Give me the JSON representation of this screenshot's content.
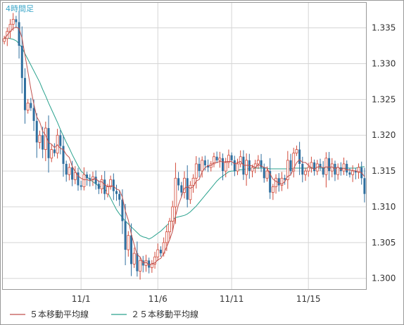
{
  "chart_data": {
    "type": "candlestick",
    "timeframe_label": "4時間足",
    "y_range": [
      1.2985,
      1.3385
    ],
    "y_ticks": [
      "1.335",
      "1.330",
      "1.325",
      "1.320",
      "1.315",
      "1.310",
      "1.305",
      "1.300"
    ],
    "x_ticks": [
      {
        "label": "11/1",
        "index": 26
      },
      {
        "label": "11/6",
        "index": 52
      },
      {
        "label": "11/11",
        "index": 77
      },
      {
        "label": "11/15",
        "index": 103
      }
    ],
    "grid": true,
    "legend_position": "bottom-left",
    "series_names": {
      "ma5": "５本移動平均線",
      "ma25": "２５本移動平均線"
    },
    "colors": {
      "up": "#d24a3a",
      "down": "#2f6f9f",
      "ma5": "#c0504d",
      "ma25": "#2aa28e",
      "grid": "#d5d5d5",
      "axis_text": "#333333"
    },
    "close_values": [
      1.3335,
      1.3345,
      1.3355,
      1.3362,
      1.3358,
      1.3325,
      1.328,
      1.3235,
      1.3245,
      1.3238,
      1.322,
      1.319,
      1.32,
      1.318,
      1.321,
      1.3168,
      1.318,
      1.3175,
      1.32,
      1.3185,
      1.316,
      1.3145,
      1.3155,
      1.3138,
      1.3148,
      1.313,
      1.3128,
      1.3145,
      1.314,
      1.3138,
      1.3142,
      1.3132,
      1.3125,
      1.3138,
      1.3118,
      1.3128,
      1.3138,
      1.3122,
      1.3118,
      1.311,
      1.308,
      1.304,
      1.306,
      1.302,
      1.3035,
      1.301,
      1.3025,
      1.3018,
      1.3025,
      1.3015,
      1.302,
      1.303,
      1.304,
      1.3035,
      1.305,
      1.3065,
      1.308,
      1.31,
      1.314,
      1.313,
      1.312,
      1.314,
      1.311,
      1.313,
      1.314,
      1.316,
      1.315,
      1.3165,
      1.3158,
      1.3155,
      1.316,
      1.317,
      1.3165,
      1.3168,
      1.315,
      1.3162,
      1.3172,
      1.3165,
      1.315,
      1.316,
      1.317,
      1.3145,
      1.3165,
      1.315,
      1.3155,
      1.316,
      1.3165,
      1.3155,
      1.314,
      1.315,
      1.312,
      1.3128,
      1.314,
      1.313,
      1.314,
      1.3138,
      1.3165,
      1.315,
      1.3175,
      1.318,
      1.316,
      1.3145,
      1.315,
      1.3155,
      1.3162,
      1.315,
      1.316,
      1.3155,
      1.3145,
      1.3168,
      1.315,
      1.316,
      1.3145,
      1.3155,
      1.315,
      1.316,
      1.3148,
      1.3145,
      1.315,
      1.3148,
      1.3155,
      1.314,
      1.3118
    ],
    "ma25_values": [
      1.3335,
      1.3336,
      1.3335,
      1.3334,
      1.3332,
      1.3328,
      1.3322,
      1.3314,
      1.3306,
      1.3298,
      1.329,
      1.3282,
      1.3274,
      1.3264,
      1.3255,
      1.3245,
      1.3236,
      1.3227,
      1.3218,
      1.3208,
      1.3199,
      1.319,
      1.3182,
      1.3173,
      1.3165,
      1.3157,
      1.315,
      1.3146,
      1.3142,
      1.3138,
      1.3135,
      1.3132,
      1.3129,
      1.3127,
      1.3125,
      1.312,
      1.3112,
      1.3104,
      1.3096,
      1.309,
      1.3085,
      1.308,
      1.3076,
      1.3072,
      1.3068,
      1.3064,
      1.306,
      1.3058,
      1.3057,
      1.3055,
      1.3057,
      1.306,
      1.3063,
      1.3066,
      1.307,
      1.3074,
      1.3078,
      1.3082,
      1.3085,
      1.3086,
      1.3087,
      1.3088,
      1.309,
      1.3093,
      1.3097,
      1.3101,
      1.3106,
      1.3111,
      1.3116,
      1.3121,
      1.3126,
      1.3131,
      1.3136,
      1.314,
      1.3143,
      1.3146,
      1.3149,
      1.315,
      1.315,
      1.3151,
      1.3152,
      1.3152,
      1.3153,
      1.3153,
      1.3153,
      1.3154,
      1.3154,
      1.3154,
      1.3154,
      1.3154,
      1.3153,
      1.3153,
      1.3153,
      1.3153,
      1.3153,
      1.3153,
      1.3153,
      1.3153,
      1.3154,
      1.3154,
      1.3154,
      1.3154,
      1.3154,
      1.3154,
      1.3154,
      1.3154,
      1.3154,
      1.3154,
      1.3154,
      1.3154,
      1.3154,
      1.3154,
      1.3154,
      1.3154,
      1.3154,
      1.3154,
      1.3154,
      1.3154,
      1.3154,
      1.3154,
      1.3155,
      1.3156,
      1.3156
    ]
  }
}
